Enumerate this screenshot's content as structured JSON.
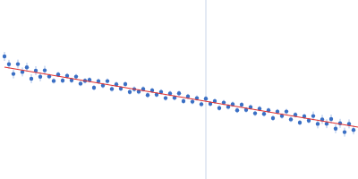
{
  "chart_data": {
    "type": "scatter",
    "tick_labels": false,
    "grid": false,
    "xlim": [
      0,
      100
    ],
    "ylim": [
      0,
      100
    ],
    "vline": 57.5,
    "series": [
      {
        "type": "scatter",
        "marker": "circle",
        "color": "#3a6fc4",
        "x": [
          1.25,
          2.5,
          3.75,
          5,
          6.25,
          7.5,
          8.75,
          10,
          11.25,
          12.5,
          13.75,
          15,
          16.25,
          17.5,
          18.75,
          20,
          21.25,
          22.5,
          23.75,
          25,
          26.25,
          27.5,
          28.75,
          30,
          31.25,
          32.5,
          33.75,
          35,
          36.25,
          37.5,
          38.75,
          40,
          41.25,
          42.5,
          43.75,
          45,
          46.25,
          47.5,
          48.75,
          50,
          51.25,
          52.5,
          53.75,
          55,
          56.25,
          57.5,
          58.75,
          60,
          61.25,
          62.5,
          63.75,
          65,
          66.25,
          67.5,
          68.75,
          70,
          71.25,
          72.5,
          73.75,
          75,
          76.25,
          77.5,
          78.75,
          80,
          81.25,
          82.5,
          83.75,
          85,
          86.25,
          87.5,
          88.75,
          90,
          91.25,
          92.5,
          93.75,
          95,
          96.25,
          97.5,
          98.75
        ],
        "values": [
          68.5,
          64.1,
          58.7,
          64.2,
          59.8,
          62.4,
          56.0,
          60.5,
          57.1,
          60.7,
          57.3,
          54.8,
          58.4,
          55.0,
          57.6,
          55.1,
          57.2,
          53.3,
          54.9,
          55.4,
          51.0,
          54.6,
          52.2,
          54.7,
          50.3,
          52.9,
          50.5,
          53.0,
          48.6,
          50.2,
          48.8,
          50.3,
          46.9,
          49.5,
          47.1,
          48.6,
          45.2,
          47.8,
          45.4,
          47.9,
          43.5,
          46.1,
          43.2,
          45.2,
          41.8,
          44.9,
          42.0,
          43.5,
          39.6,
          42.7,
          40.3,
          41.8,
          38.4,
          41.5,
          38.6,
          40.1,
          36.7,
          39.3,
          36.4,
          38.4,
          34.0,
          37.6,
          35.2,
          37.7,
          33.3,
          35.9,
          31.5,
          35.0,
          32.6,
          35.2,
          30.8,
          33.3,
          30.9,
          33.5,
          28.1,
          31.1,
          26.2,
          30.8,
          27.4
        ],
        "errors": [
          2.5,
          2.5,
          2.5,
          2.5,
          2.5,
          2.5,
          2.5,
          2.5,
          2.5,
          2.5,
          1.5,
          1.5,
          1.5,
          1.5,
          1.5,
          1.5,
          1.5,
          1.5,
          1.5,
          1.5,
          1.5,
          1.5,
          1.5,
          1.5,
          1.5,
          1.5,
          1.5,
          1.5,
          1.5,
          1.5,
          1.5,
          1.5,
          1.5,
          1.5,
          1.5,
          1.5,
          1.5,
          1.5,
          1.5,
          1.5,
          1.5,
          1.5,
          1.5,
          1.5,
          1.5,
          1.5,
          1.5,
          1.5,
          1.5,
          1.5,
          1.5,
          1.5,
          1.5,
          1.5,
          1.5,
          1.5,
          1.5,
          1.5,
          1.5,
          1.5,
          1.5,
          1.5,
          1.5,
          1.5,
          1.5,
          1.5,
          1.5,
          1.5,
          1.5,
          2.5,
          2.5,
          2.5,
          2.5,
          2.5,
          2.5,
          2.5,
          2.5,
          2.5,
          2.5
        ]
      },
      {
        "type": "line",
        "line_style": "solid",
        "color": "#e03030",
        "x": [
          1.25,
          100
        ],
        "values": [
          62.5,
          29
        ]
      }
    ]
  }
}
